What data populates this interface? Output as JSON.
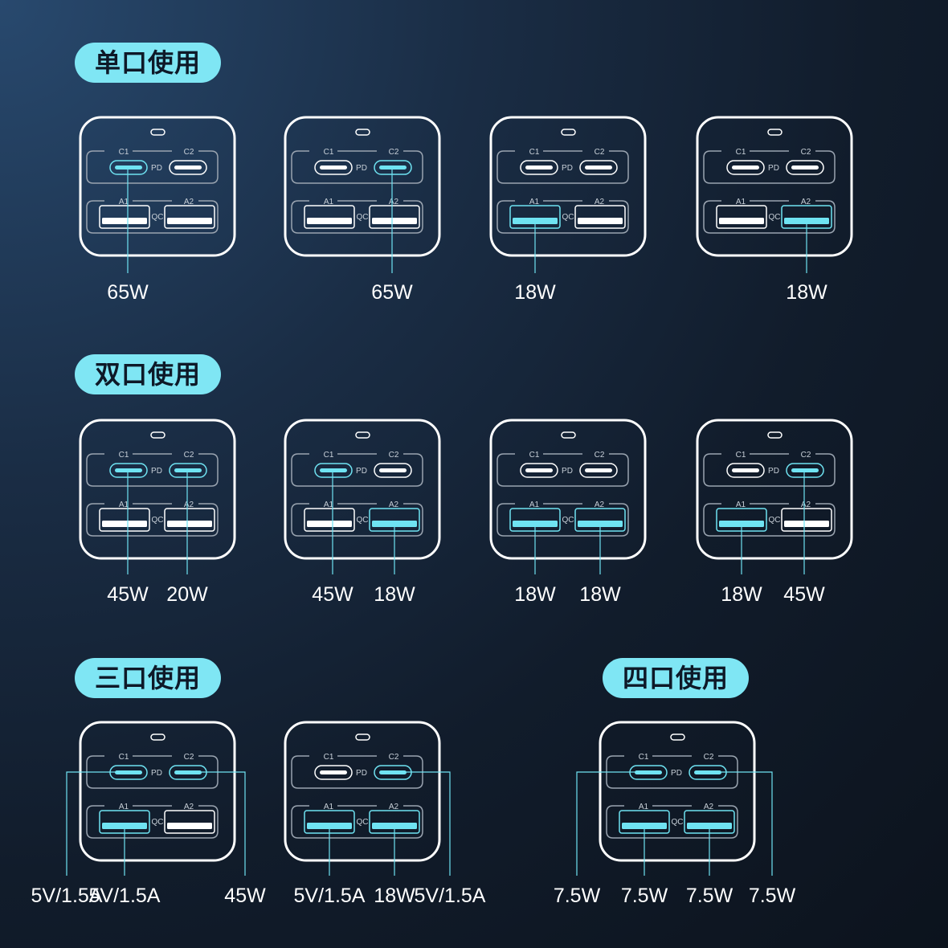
{
  "colors": {
    "accent": "#6fe3f2",
    "outline": "#ffffff",
    "group_outline": "#9aa4b0",
    "pill_bg": "#7fe6f4"
  },
  "port_labels": {
    "c1": "C1",
    "c2": "C2",
    "a1": "A1",
    "a2": "A2",
    "pd": "PD",
    "qc": "QC"
  },
  "sections": [
    {
      "title": "单口使用",
      "chargers": [
        {
          "active": [
            "c1"
          ],
          "outputs": [
            {
              "port": "c1",
              "label": "65W"
            }
          ]
        },
        {
          "active": [
            "c2"
          ],
          "outputs": [
            {
              "port": "c2",
              "label": "65W"
            }
          ]
        },
        {
          "active": [
            "a1"
          ],
          "outputs": [
            {
              "port": "a1",
              "label": "18W"
            }
          ]
        },
        {
          "active": [
            "a2"
          ],
          "outputs": [
            {
              "port": "a2",
              "label": "18W"
            }
          ]
        }
      ]
    },
    {
      "title": "双口使用",
      "chargers": [
        {
          "active": [
            "c1",
            "c2"
          ],
          "outputs": [
            {
              "port": "c1",
              "label": "45W"
            },
            {
              "port": "c2",
              "label": "20W"
            }
          ]
        },
        {
          "active": [
            "c1",
            "a2"
          ],
          "outputs": [
            {
              "port": "c1",
              "label": "45W"
            },
            {
              "port": "a2",
              "label": "18W"
            }
          ]
        },
        {
          "active": [
            "a1",
            "a2"
          ],
          "outputs": [
            {
              "port": "a1",
              "label": "18W"
            },
            {
              "port": "a2",
              "label": "18W"
            }
          ]
        },
        {
          "active": [
            "a1",
            "c2"
          ],
          "outputs": [
            {
              "port": "a1",
              "label": "18W"
            },
            {
              "port": "c2",
              "label": "45W"
            }
          ]
        }
      ]
    },
    {
      "title": "三口使用",
      "chargers": [
        {
          "active": [
            "c1",
            "c2",
            "a1"
          ],
          "outputs": [
            {
              "port": "c1",
              "label": "5V/1.5A"
            },
            {
              "port": "a1",
              "label": "5V/1.5A"
            },
            {
              "port": "c2",
              "label": "45W"
            }
          ]
        },
        {
          "active": [
            "c2",
            "a1",
            "a2"
          ],
          "outputs": [
            {
              "port": "a1",
              "label": "5V/1.5A"
            },
            {
              "port": "a2",
              "label": "18W"
            },
            {
              "port": "c2",
              "label": "5V/1.5A"
            }
          ]
        }
      ]
    },
    {
      "title": "四口使用",
      "chargers": [
        {
          "active": [
            "c1",
            "c2",
            "a1",
            "a2"
          ],
          "outputs": [
            {
              "port": "c1",
              "label": "7.5W"
            },
            {
              "port": "a1",
              "label": "7.5W"
            },
            {
              "port": "a2",
              "label": "7.5W"
            },
            {
              "port": "c2",
              "label": "7.5W"
            }
          ]
        }
      ]
    }
  ]
}
